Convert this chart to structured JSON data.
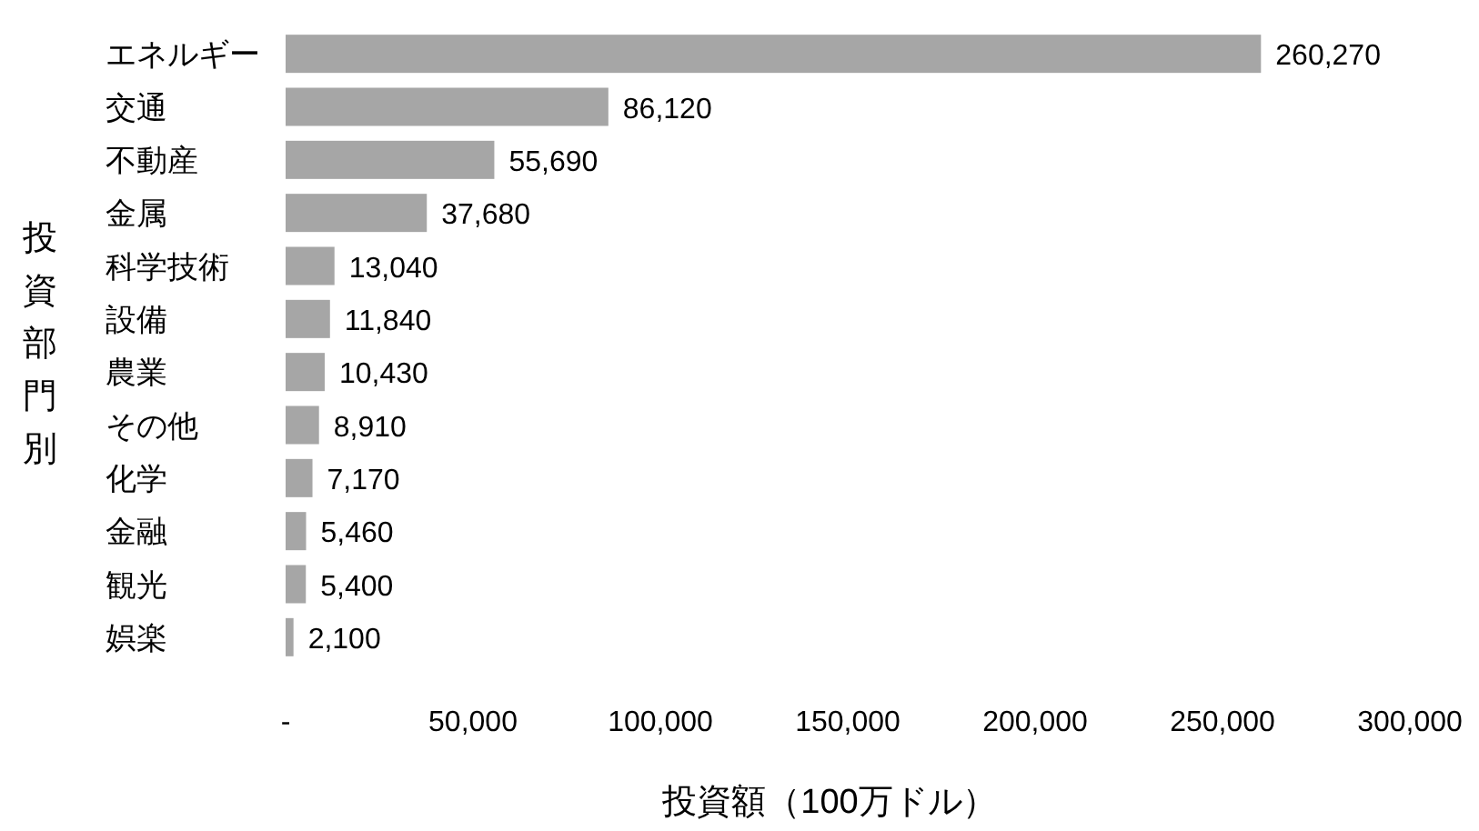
{
  "chart_data": {
    "type": "bar",
    "orientation": "horizontal",
    "xlabel": "投資額（100万ドル）",
    "ylabel": "投資部門別",
    "categories": [
      "エネルギー",
      "交通",
      "不動産",
      "金属",
      "科学技術",
      "設備",
      "農業",
      "その他",
      "化学",
      "金融",
      "観光",
      "娯楽"
    ],
    "values": [
      260270,
      86120,
      55690,
      37680,
      13040,
      11840,
      10430,
      8910,
      7170,
      5460,
      5400,
      2100
    ],
    "value_labels": [
      "260,270",
      "86,120",
      "55,690",
      "37,680",
      "13,040",
      "11,840",
      "10,430",
      "8,910",
      "7,170",
      "5,460",
      "5,400",
      "2,100"
    ],
    "color": "#a6a6a6",
    "grid": false,
    "xlim": [
      0,
      300000
    ],
    "xticks": [
      {
        "value": 0,
        "label": "-"
      },
      {
        "value": 50000,
        "label": "50,000"
      },
      {
        "value": 100000,
        "label": "100,000"
      },
      {
        "value": 150000,
        "label": "150,000"
      },
      {
        "value": 200000,
        "label": "200,000"
      },
      {
        "value": 250000,
        "label": "250,000"
      },
      {
        "value": 300000,
        "label": "300,000"
      }
    ]
  }
}
